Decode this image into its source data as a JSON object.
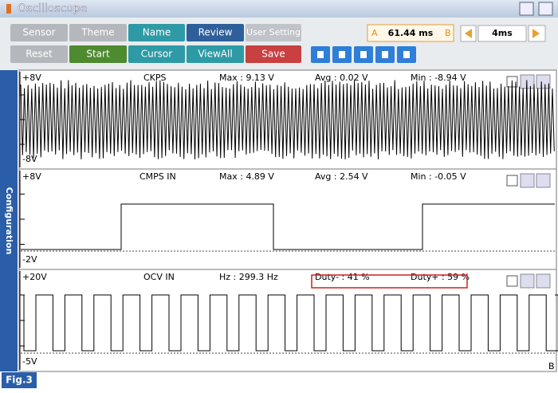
{
  "header": {
    "title": "Oscilloscope"
  },
  "toolbar": {
    "row1": [
      "Sensor",
      "Theme",
      "Name",
      "Review",
      "User Setting"
    ],
    "row2": [
      "Reset",
      "Start",
      "Cursor",
      "ViewAll",
      "Save"
    ],
    "cursor": {
      "a": "A",
      "time": "61.44 ms",
      "b": "B"
    },
    "timebase": "4ms"
  },
  "side_tab": "Configuration",
  "channels": [
    {
      "range_top": "+8V",
      "name": "CKPS",
      "stats": [
        "Max : 9.13 V",
        "Avg : 0.02 V",
        "Min : -8.94 V"
      ],
      "range_bottom": "-8V"
    },
    {
      "range_top": "+8V",
      "name": "CMPS IN",
      "stats": [
        "Max : 4.89 V",
        "Avg : 2.54 V",
        "Min : -0.05 V"
      ],
      "range_bottom": "-2V"
    },
    {
      "range_top": "+20V",
      "name": "OCV IN",
      "stats": [
        "Hz : 299.3 Hz",
        "Duty- : 41 %",
        "Duty+ : 59 %"
      ],
      "range_bottom": "-5V"
    }
  ],
  "corner_mark": "B",
  "figure_label": "Fig.3"
}
